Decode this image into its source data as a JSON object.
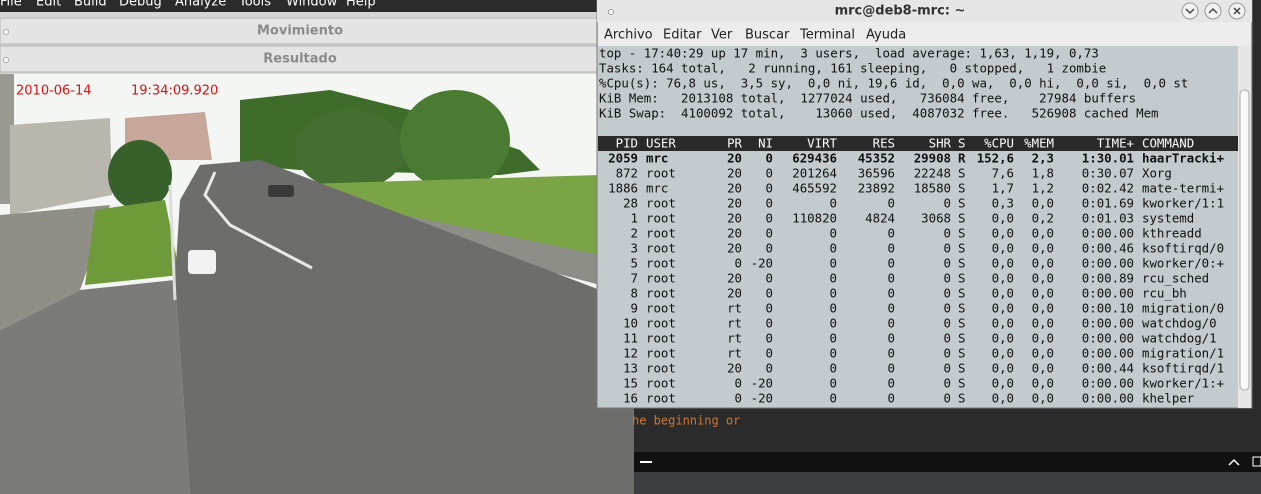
{
  "ide_menu": [
    "File",
    "Edit",
    "Build",
    "Debug",
    "Analyze",
    "Tools",
    "Window",
    "Help"
  ],
  "panels": [
    "Movimiento",
    "Resultado"
  ],
  "video": {
    "date": "2010-06-14",
    "time": "19:34:09.920"
  },
  "terminal": {
    "title": "mrc@deb8-mrc: ~",
    "menu": [
      "Archivo",
      "Editar",
      "Ver",
      "Buscar",
      "Terminal",
      "Ayuda"
    ],
    "summary": [
      "top - 17:40:29 up 17 min,  3 users,  load average: 1,63, 1,19, 0,73",
      "Tasks: 164 total,   2 running, 161 sleeping,   0 stopped,   1 zombie",
      "%Cpu(s): 76,8 us,  3,5 sy,  0,0 ni, 19,6 id,  0,0 wa,  0,0 hi,  0,0 si,  0,0 st",
      "KiB Mem:   2013108 total,  1277024 used,   736084 free,    27984 buffers",
      "KiB Swap:  4100092 total,    13060 used,  4087032 free.   526908 cached Mem"
    ],
    "columns": [
      "PID",
      "USER",
      "PR",
      "NI",
      "VIRT",
      "RES",
      "SHR",
      "S",
      "%CPU",
      "%MEM",
      "TIME+",
      "COMMAND"
    ],
    "rows": [
      [
        "2059",
        "mrc",
        "20",
        "0",
        "629436",
        "45352",
        "29908",
        "R",
        "152,6",
        "2,3",
        "1:30.01",
        "haarTracki+"
      ],
      [
        "872",
        "root",
        "20",
        "0",
        "201264",
        "36596",
        "22248",
        "S",
        "7,6",
        "1,8",
        "0:30.07",
        "Xorg"
      ],
      [
        "1886",
        "mrc",
        "20",
        "0",
        "465592",
        "23892",
        "18580",
        "S",
        "1,7",
        "1,2",
        "0:02.42",
        "mate-termi+"
      ],
      [
        "28",
        "root",
        "20",
        "0",
        "0",
        "0",
        "0",
        "S",
        "0,3",
        "0,0",
        "0:01.69",
        "kworker/1:1"
      ],
      [
        "1",
        "root",
        "20",
        "0",
        "110820",
        "4824",
        "3068",
        "S",
        "0,0",
        "0,2",
        "0:01.03",
        "systemd"
      ],
      [
        "2",
        "root",
        "20",
        "0",
        "0",
        "0",
        "0",
        "S",
        "0,0",
        "0,0",
        "0:00.00",
        "kthreadd"
      ],
      [
        "3",
        "root",
        "20",
        "0",
        "0",
        "0",
        "0",
        "S",
        "0,0",
        "0,0",
        "0:00.46",
        "ksoftirqd/0"
      ],
      [
        "5",
        "root",
        "0",
        "-20",
        "0",
        "0",
        "0",
        "S",
        "0,0",
        "0,0",
        "0:00.00",
        "kworker/0:+"
      ],
      [
        "7",
        "root",
        "20",
        "0",
        "0",
        "0",
        "0",
        "S",
        "0,0",
        "0,0",
        "0:00.89",
        "rcu_sched"
      ],
      [
        "8",
        "root",
        "20",
        "0",
        "0",
        "0",
        "0",
        "S",
        "0,0",
        "0,0",
        "0:00.00",
        "rcu_bh"
      ],
      [
        "9",
        "root",
        "rt",
        "0",
        "0",
        "0",
        "0",
        "S",
        "0,0",
        "0,0",
        "0:00.10",
        "migration/0"
      ],
      [
        "10",
        "root",
        "rt",
        "0",
        "0",
        "0",
        "0",
        "S",
        "0,0",
        "0,0",
        "0:00.00",
        "watchdog/0"
      ],
      [
        "11",
        "root",
        "rt",
        "0",
        "0",
        "0",
        "0",
        "S",
        "0,0",
        "0,0",
        "0:00.00",
        "watchdog/1"
      ],
      [
        "12",
        "root",
        "rt",
        "0",
        "0",
        "0",
        "0",
        "S",
        "0,0",
        "0,0",
        "0:00.00",
        "migration/1"
      ],
      [
        "13",
        "root",
        "20",
        "0",
        "0",
        "0",
        "0",
        "S",
        "0,0",
        "0,0",
        "0:00.44",
        "ksoftirqd/1"
      ],
      [
        "15",
        "root",
        "0",
        "-20",
        "0",
        "0",
        "0",
        "S",
        "0,0",
        "0,0",
        "0:00.00",
        "kworker/1:+"
      ],
      [
        "16",
        "root",
        "0",
        "-20",
        "0",
        "0",
        "0",
        "S",
        "0,0",
        "0,0",
        "0:00.00",
        "khelper"
      ]
    ]
  },
  "editor": {
    "text": "he beginning or"
  }
}
